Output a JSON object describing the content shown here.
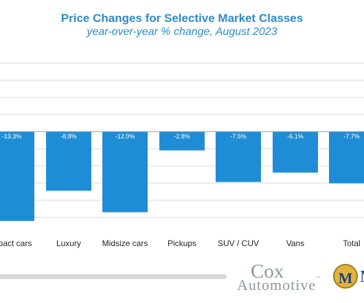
{
  "chart_data": {
    "type": "bar",
    "title": "Price Changes for Selective Market Classes",
    "subtitle": "year-over-year % change, August 2023",
    "categories": [
      "Compact cars",
      "Luxury",
      "Midsize cars",
      "Pickups",
      "SUV / CUV",
      "Vans",
      "Total"
    ],
    "category_labels_visible": [
      "mpact cars",
      "Luxury",
      "Midsize cars",
      "Pickups",
      "SUV / CUV",
      "Vans",
      "Total"
    ],
    "values": [
      -13.3,
      -8.8,
      -12.0,
      -2.8,
      -7.5,
      -6.1,
      -7.7
    ],
    "data_labels": [
      "-13.3%",
      "-8.8%",
      "-12.0%",
      "-2.8%",
      "-7.5%",
      "-6.1%",
      "-7.7%"
    ],
    "ylim": [
      -14,
      10
    ],
    "grid": true,
    "bar_color": "#1f8dd6",
    "label_color": "#ffffff"
  },
  "branding": {
    "cox_top": "Cox",
    "cox_bottom": "Automotive",
    "cox_tm": "™",
    "badge_letter": "M",
    "badge_cut": "M"
  },
  "colors": {
    "title": "#2e8bc9",
    "grid": "#d9d9d9",
    "axis": "#9a9a9a"
  }
}
